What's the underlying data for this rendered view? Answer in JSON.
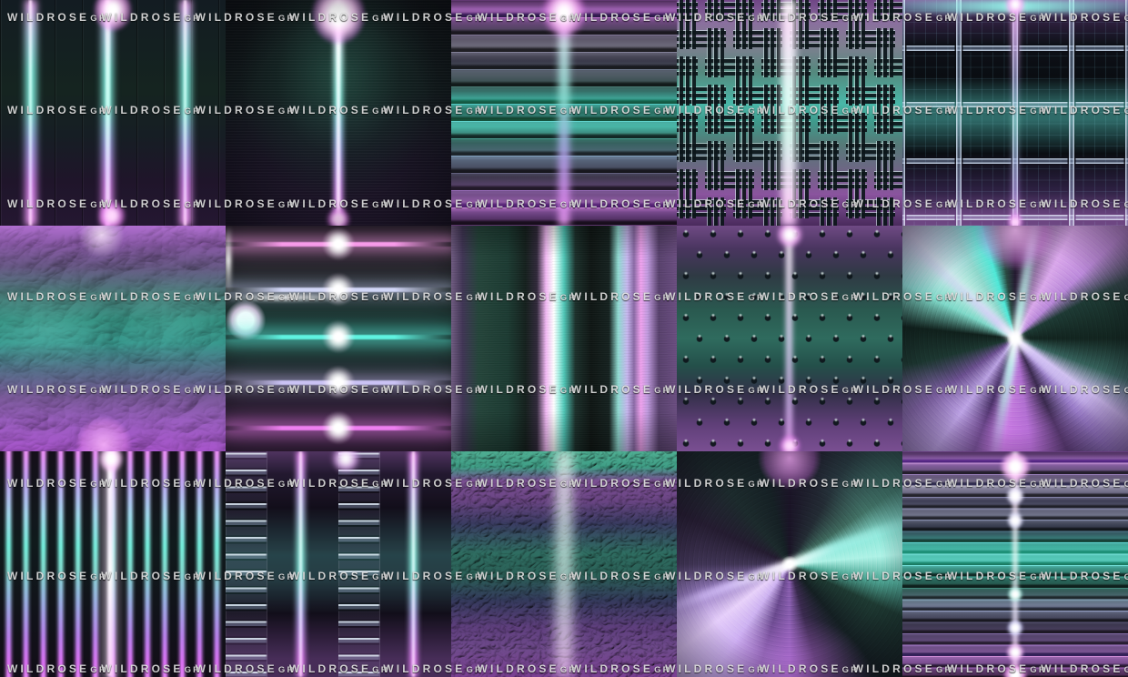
{
  "watermark": {
    "brand_main": "WILDROSE",
    "brand_suffix": "GR",
    "color": "#ffffff"
  },
  "palette": {
    "teal_bright": "#8ff0e4",
    "teal": "#3fae9e",
    "teal_deep": "#1e4a42",
    "magenta": "#e87ff0",
    "magenta_light": "#ffd6fb",
    "lavender": "#c4b4ec",
    "purple": "#6a4585",
    "purple_deep": "#2a1838",
    "metal_grey": "#6b6878",
    "background_dark": "#0d1216"
  },
  "tiles": [
    {
      "row": 1,
      "col": 1,
      "texture": "brushed-metal-vertical-panels-with-neon-glow-lines"
    },
    {
      "row": 1,
      "col": 2,
      "texture": "dark-brushed-metal-single-vertical-light-beam"
    },
    {
      "row": 1,
      "col": 3,
      "texture": "wide-horizontal-metal-strips-with-center-beam"
    },
    {
      "row": 1,
      "col": 4,
      "texture": "tread-plate-checker-metal"
    },
    {
      "row": 1,
      "col": 5,
      "texture": "metal-grid-tiles-with-glow-lines"
    },
    {
      "row": 2,
      "col": 1,
      "texture": "liquid-metal-crumpled-foil"
    },
    {
      "row": 2,
      "col": 2,
      "texture": "horizontal-neon-glow-bars-with-flares"
    },
    {
      "row": 2,
      "col": 3,
      "texture": "polished-chrome-vertical-streaks"
    },
    {
      "row": 2,
      "col": 4,
      "texture": "studded-metal-dot-pattern"
    },
    {
      "row": 2,
      "col": 5,
      "texture": "radial-brushed-metal-centered"
    },
    {
      "row": 3,
      "col": 1,
      "texture": "vertical-neon-rods"
    },
    {
      "row": 3,
      "col": 2,
      "texture": "metal-ladder-panels-with-glow-lines"
    },
    {
      "row": 3,
      "col": 3,
      "texture": "embossed-leaf-pattern-metal"
    },
    {
      "row": 3,
      "col": 4,
      "texture": "radial-brushed-metal-soft"
    },
    {
      "row": 3,
      "col": 5,
      "texture": "thin-horizontal-strips-with-center-flares"
    }
  ]
}
